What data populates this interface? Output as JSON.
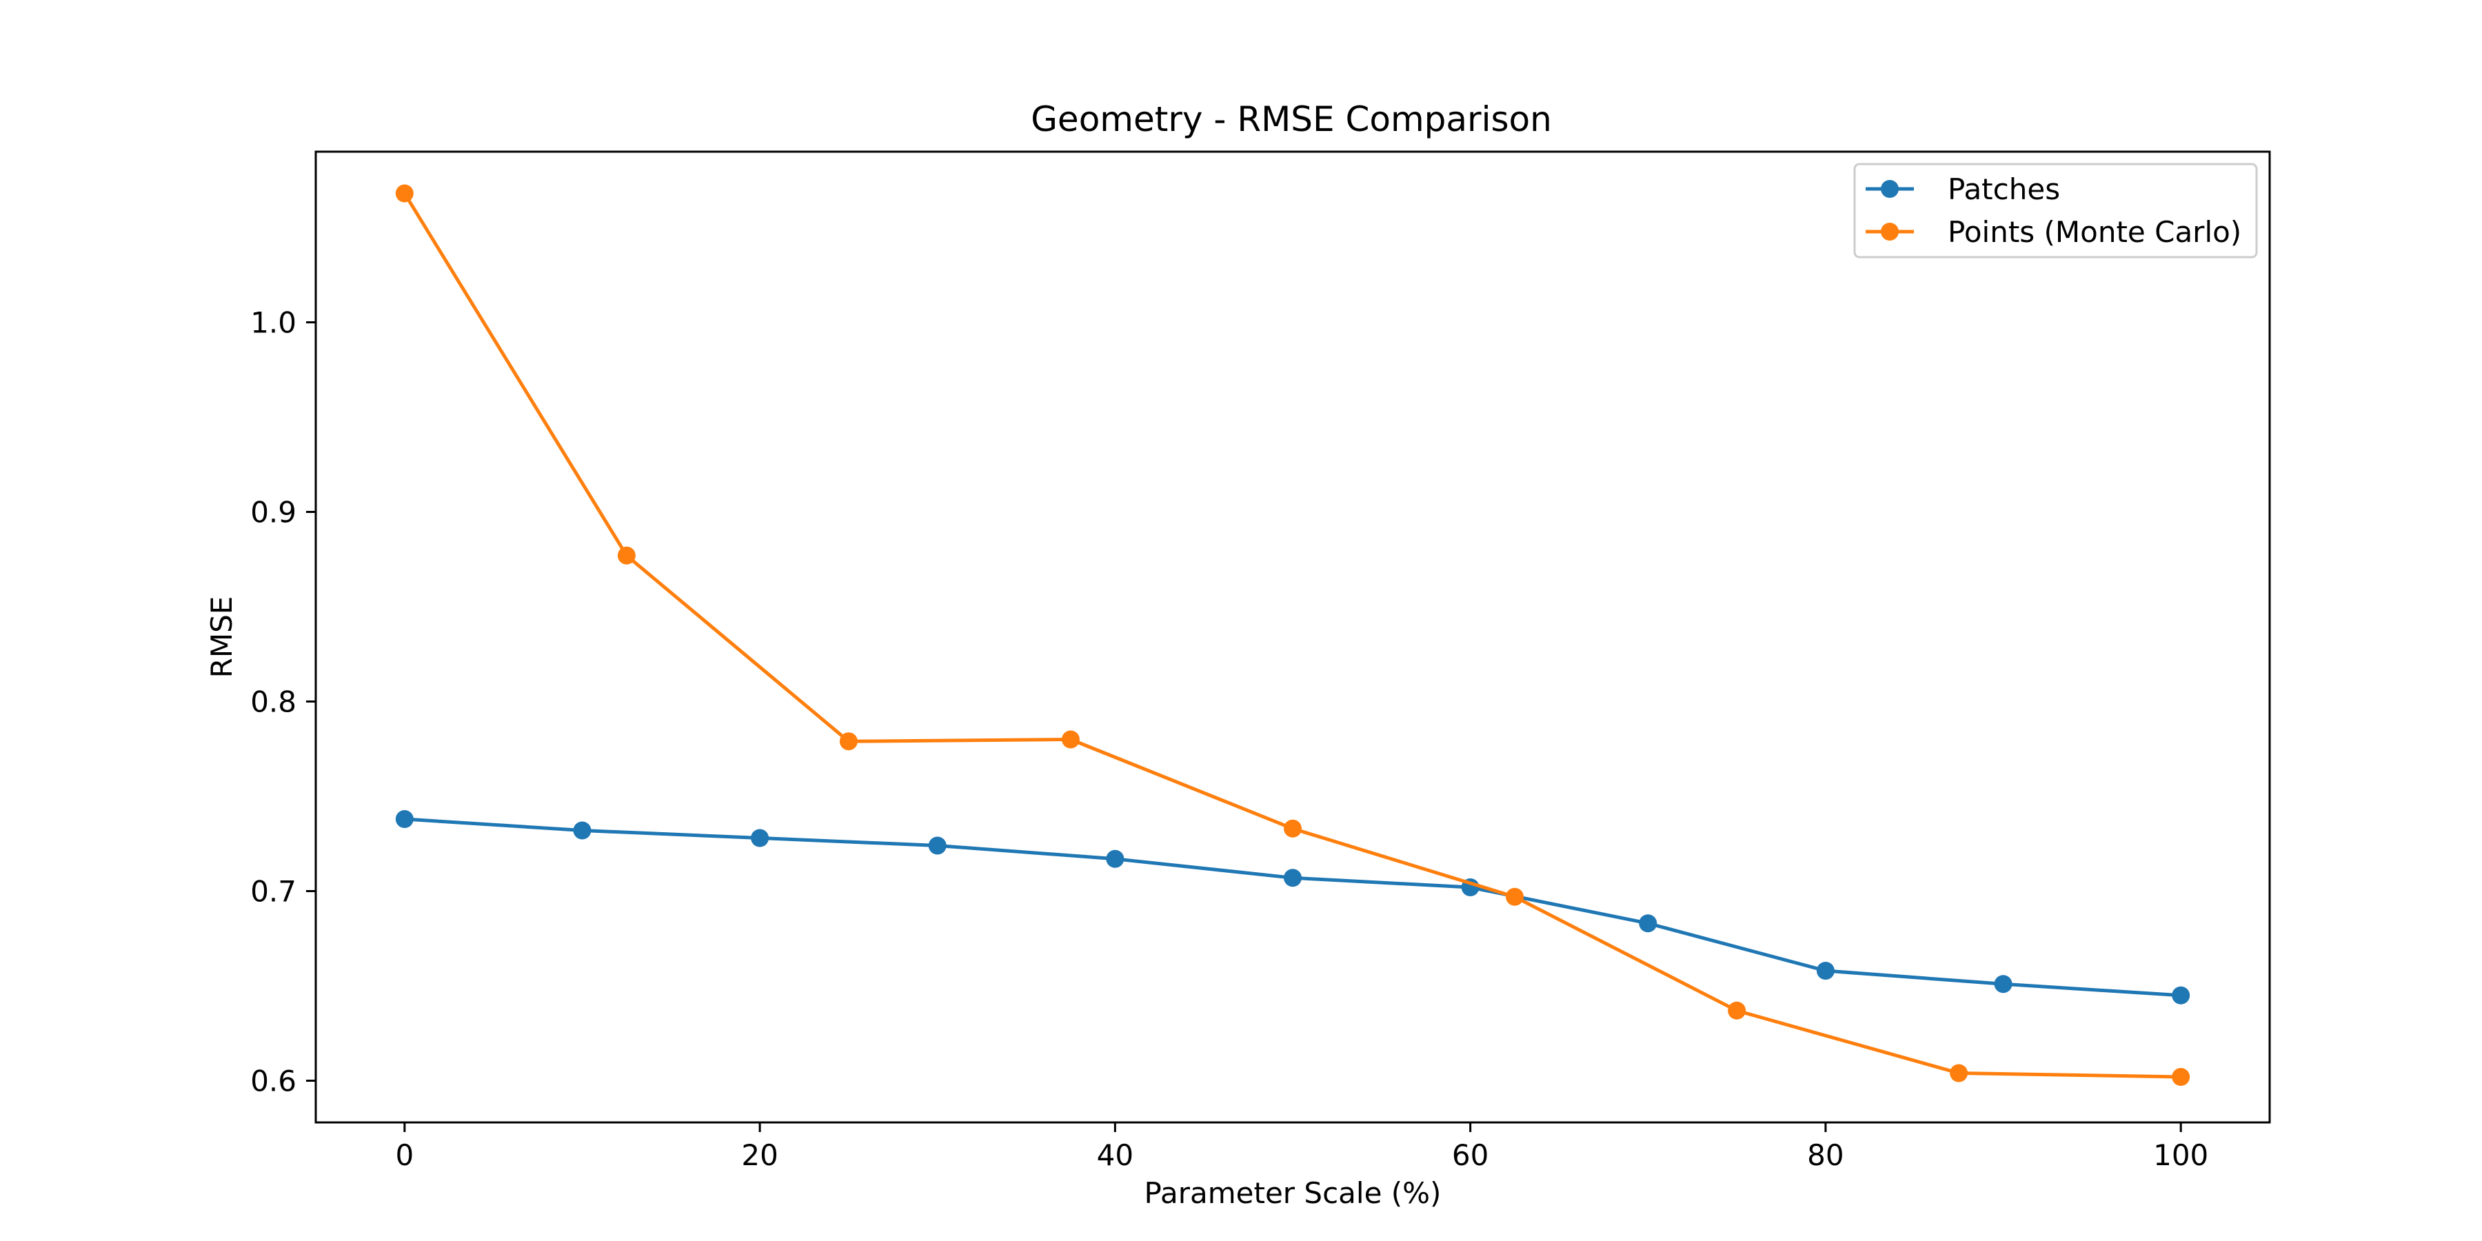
{
  "chart_data": {
    "type": "line",
    "title": "Geometry - RMSE Comparison",
    "xlabel": "Parameter Scale (%)",
    "ylabel": "RMSE",
    "xlim": [
      -5,
      105
    ],
    "ylim": [
      0.578,
      1.09
    ],
    "xticks": [
      0,
      20,
      40,
      60,
      80,
      100
    ],
    "yticks": [
      0.6,
      0.7,
      0.8,
      0.9,
      1.0
    ],
    "xtick_labels": [
      "0",
      "20",
      "40",
      "60",
      "80",
      "100"
    ],
    "ytick_labels": [
      "0.6",
      "0.7",
      "0.8",
      "0.9",
      "1.0"
    ],
    "grid": false,
    "legend_position": "top-right",
    "series": [
      {
        "name": "Patches",
        "color": "#1f77b4",
        "x": [
          0,
          10,
          20,
          30,
          40,
          50,
          60,
          70,
          80,
          90,
          100
        ],
        "y": [
          0.738,
          0.732,
          0.728,
          0.724,
          0.717,
          0.707,
          0.702,
          0.683,
          0.658,
          0.651,
          0.645
        ]
      },
      {
        "name": "Points (Monte Carlo)",
        "color": "#ff7f0e",
        "x": [
          0,
          12.5,
          25,
          37.5,
          50,
          62.5,
          75,
          87.5,
          100
        ],
        "y": [
          1.068,
          0.877,
          0.779,
          0.78,
          0.733,
          0.697,
          0.637,
          0.604,
          0.602
        ]
      }
    ]
  }
}
